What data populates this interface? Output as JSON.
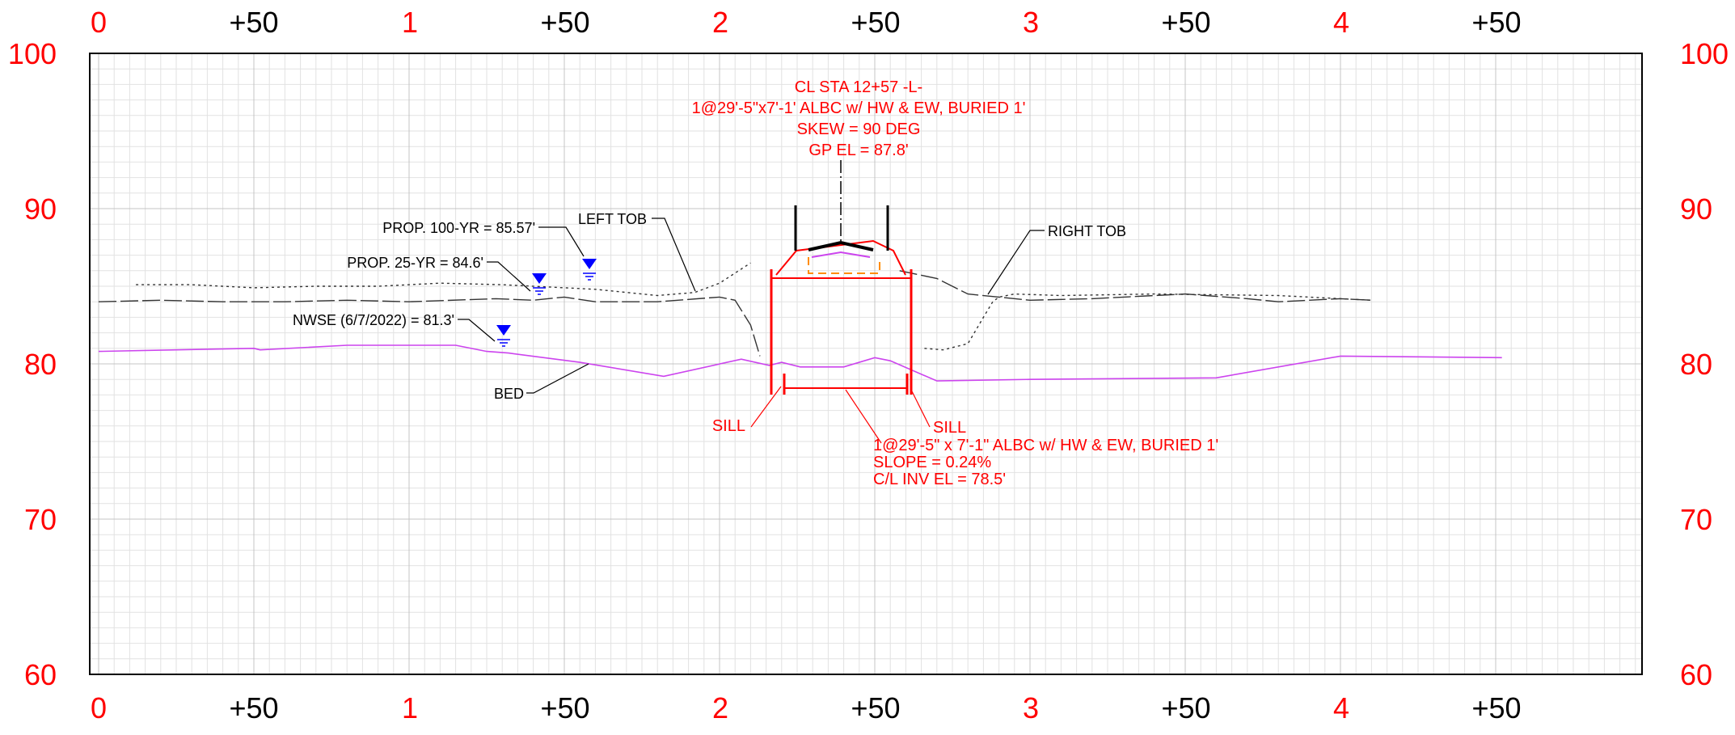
{
  "colors": {
    "background": "#ffffff",
    "station_label_red": "#ff0000",
    "station_label_black": "#000000",
    "grid_minor": "#e2e2e2",
    "grid_major": "#c4c4c4",
    "bed_line": "#cc44ee",
    "culvert": "#ff0000",
    "water_symbol": "#0000ff",
    "headwall_orange": "#ff8c00"
  },
  "stations": {
    "top": [
      "0",
      "+50",
      "1",
      "+50",
      "2",
      "+50",
      "3",
      "+50",
      "4",
      "+50"
    ],
    "bottom": [
      "0",
      "+50",
      "1",
      "+50",
      "2",
      "+50",
      "3",
      "+50",
      "4",
      "+50"
    ]
  },
  "elevations": {
    "left": [
      "100",
      "90",
      "80",
      "70",
      "60"
    ],
    "right": [
      "100",
      "90",
      "80",
      "70",
      "60"
    ]
  },
  "annotations": {
    "crossing": {
      "line1": "CL STA 12+57 -L-",
      "line2": "1@29'-5\"x7'-1' ALBC w/ HW & EW, BURIED 1'",
      "line3": "SKEW = 90 DEG",
      "line4": "GP EL = 87.8'"
    },
    "left_tob": "LEFT TOB",
    "right_tob": "RIGHT TOB",
    "prop_100yr": "PROP. 100-YR = 85.57'",
    "prop_25yr": "PROP. 25-YR = 84.6'",
    "nwse": "NWSE (6/7/2022) = 81.3'",
    "bed": "BED",
    "sill_left": "SILL",
    "sill_right": "SILL",
    "culvert": {
      "line1": "1@29'-5\" x 7'-1\" ALBC w/ HW & EW, BURIED 1'",
      "line2": "SLOPE = 0.24%",
      "line3": "C/L INV EL = 78.5'"
    }
  },
  "chart_data": {
    "type": "line",
    "xlabel": "",
    "ylabel": "",
    "xlim": [
      0,
      500
    ],
    "ylim": [
      60,
      100
    ],
    "x_tick_labels": [
      "0",
      "+50",
      "1",
      "+50",
      "2",
      "+50",
      "3",
      "+50",
      "4",
      "+50"
    ],
    "y_ticks": [
      100,
      90,
      80,
      70,
      60
    ],
    "grid": true,
    "series": [
      {
        "name": "BED",
        "x": [
          0,
          50,
          52,
          80,
          115,
          125,
          132,
          155,
          182,
          207,
          216,
          220,
          226,
          240,
          250,
          255,
          270,
          300,
          360,
          400,
          452
        ],
        "y": [
          80.8,
          81.0,
          80.9,
          81.2,
          81.2,
          80.8,
          80.7,
          80.1,
          79.2,
          80.3,
          79.9,
          80.1,
          79.8,
          79.8,
          80.4,
          80.2,
          78.9,
          79.0,
          79.1,
          80.5,
          80.4
        ]
      },
      {
        "name": "",
        "x": [
          0,
          20,
          40,
          60,
          80,
          100,
          128,
          140,
          150,
          160,
          180,
          200,
          205,
          210,
          213
        ],
        "y": [
          84.0,
          84.1,
          84.0,
          84.0,
          84.1,
          84.0,
          84.2,
          84.1,
          84.3,
          84.0,
          84.0,
          84.3,
          84.1,
          82.5,
          80.5
        ]
      },
      {
        "name": "",
        "x": [
          258,
          270,
          280,
          300,
          320,
          350,
          370,
          380,
          400,
          410
        ],
        "y": [
          86.0,
          85.5,
          84.5,
          84.1,
          84.2,
          84.5,
          84.2,
          84.0,
          84.2,
          84.1
        ]
      },
      {
        "name": "",
        "x": [
          12,
          30,
          50,
          70,
          90,
          110,
          130,
          150,
          160,
          180,
          192,
          200,
          210
        ],
        "y": [
          85.1,
          85.1,
          84.9,
          85.0,
          85.0,
          85.2,
          85.1,
          84.9,
          84.8,
          84.4,
          84.6,
          85.2,
          86.5
        ]
      },
      {
        "name": "",
        "x": [
          266,
          272,
          280,
          285,
          288,
          290,
          295,
          310,
          340,
          380,
          400,
          410
        ],
        "y": [
          81.0,
          80.9,
          81.3,
          83.0,
          84.0,
          84.3,
          84.5,
          84.4,
          84.5,
          84.4,
          84.2,
          84.1
        ]
      }
    ],
    "water_surfaces": [
      {
        "label": "PROP. 100-YR",
        "elevation": 85.57,
        "station": 157
      },
      {
        "label": "PROP. 25-YR",
        "elevation": 84.6,
        "station": 142
      },
      {
        "label": "NWSE",
        "elevation": 81.3,
        "station": 131
      }
    ],
    "culvert": {
      "left_wall_station": 219,
      "right_wall_station": 263,
      "top_elevation": 85.7,
      "invert_elevation": 78.5,
      "road_station": 240,
      "road_elevation": 87.8
    }
  }
}
